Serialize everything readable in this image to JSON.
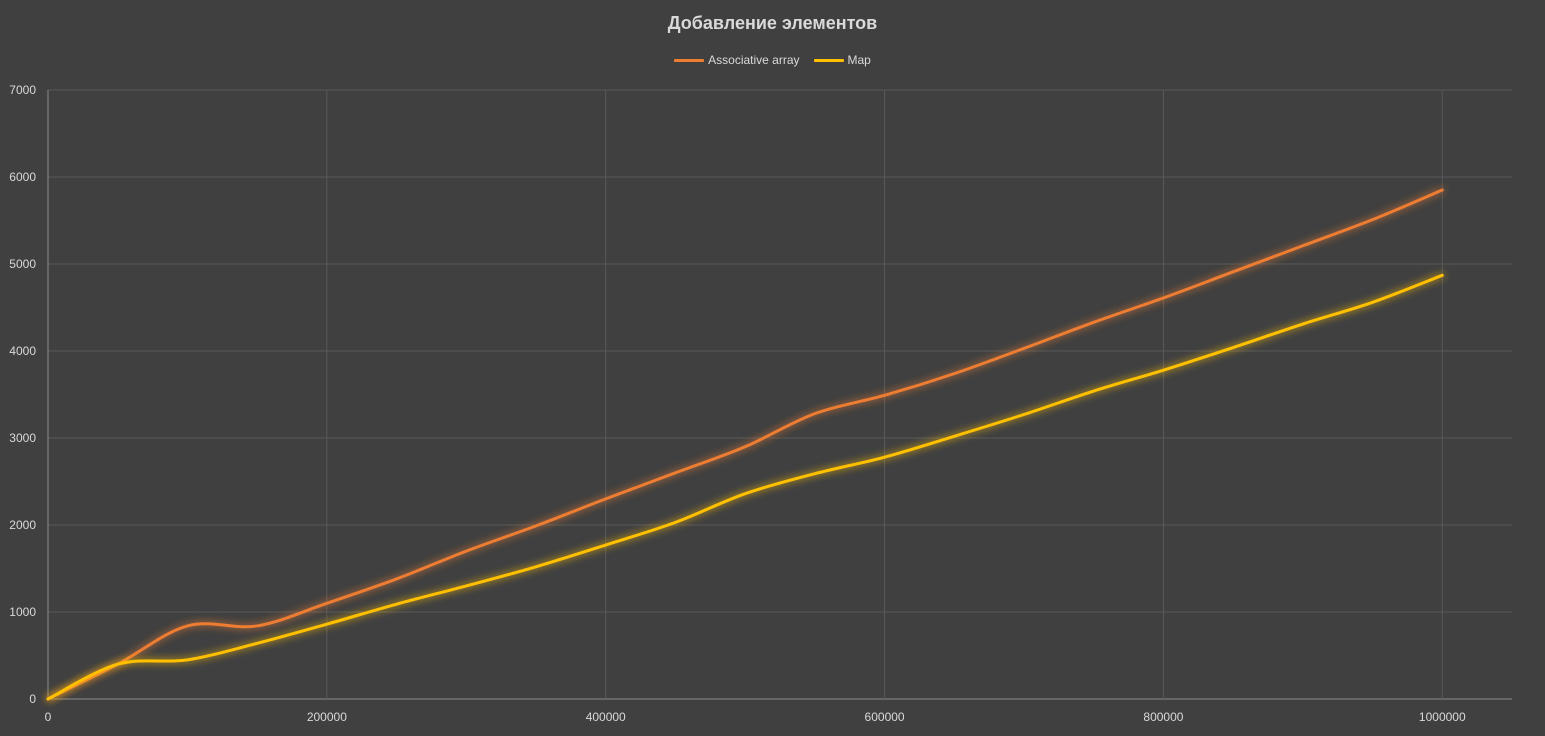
{
  "chart_data": {
    "type": "line",
    "title": "Добавление элементов",
    "xlabel": "",
    "ylabel": "",
    "xlim": [
      0,
      1050000
    ],
    "ylim": [
      0,
      7000
    ],
    "xticks": [
      0,
      200000,
      400000,
      600000,
      800000,
      1000000
    ],
    "yticks": [
      0,
      1000,
      2000,
      3000,
      4000,
      5000,
      6000,
      7000
    ],
    "grid": true,
    "legend_position": "top-center",
    "series": [
      {
        "name": "Associative array",
        "color": "#ED7D31",
        "x": [
          0,
          50000,
          100000,
          150000,
          200000,
          250000,
          300000,
          350000,
          400000,
          450000,
          500000,
          550000,
          600000,
          650000,
          700000,
          750000,
          800000,
          850000,
          900000,
          950000,
          1000000
        ],
        "y": [
          0,
          400,
          840,
          840,
          1100,
          1380,
          1700,
          1990,
          2300,
          2600,
          2900,
          3280,
          3490,
          3740,
          4030,
          4330,
          4610,
          4910,
          5210,
          5510,
          5850
        ]
      },
      {
        "name": "Map",
        "color": "#FFC000",
        "x": [
          0,
          50000,
          100000,
          150000,
          200000,
          250000,
          300000,
          350000,
          400000,
          450000,
          500000,
          550000,
          600000,
          650000,
          700000,
          750000,
          800000,
          850000,
          900000,
          950000,
          1000000
        ],
        "y": [
          0,
          400,
          450,
          640,
          860,
          1090,
          1300,
          1520,
          1770,
          2030,
          2360,
          2590,
          2780,
          3020,
          3270,
          3540,
          3780,
          4040,
          4310,
          4560,
          4870
        ]
      }
    ]
  }
}
